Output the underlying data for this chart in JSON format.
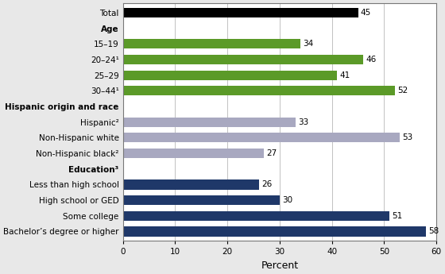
{
  "categories": [
    "Total",
    "Age",
    "15–19",
    "20–24¹",
    "25–29",
    "30–44¹",
    "Hispanic origin and race",
    "Hispanic²",
    "Non-Hispanic white",
    "Non-Hispanic black²",
    "Education³",
    "Less than high school",
    "High school or GED",
    "Some college",
    "Bachelor’s degree or higher"
  ],
  "values": [
    45,
    null,
    34,
    46,
    41,
    52,
    null,
    33,
    53,
    27,
    null,
    26,
    30,
    51,
    58
  ],
  "colors": [
    "#000000",
    null,
    "#5b9a28",
    "#5b9a28",
    "#5b9a28",
    "#5b9a28",
    null,
    "#a8a8c0",
    "#a8a8c0",
    "#a8a8c0",
    null,
    "#1f3869",
    "#1f3869",
    "#1f3869",
    "#1f3869"
  ],
  "header_indices": [
    1,
    6,
    10
  ],
  "xlabel": "Percent",
  "xlim": [
    0,
    60
  ],
  "xticks": [
    0,
    10,
    20,
    30,
    40,
    50,
    60
  ],
  "bar_height": 0.62,
  "figure_width": 5.6,
  "figure_height": 3.45,
  "dpi": 100,
  "background_color": "#e8e8e8",
  "plot_bg_color": "#ffffff",
  "label_fontsize": 7.5,
  "xlabel_fontsize": 9
}
